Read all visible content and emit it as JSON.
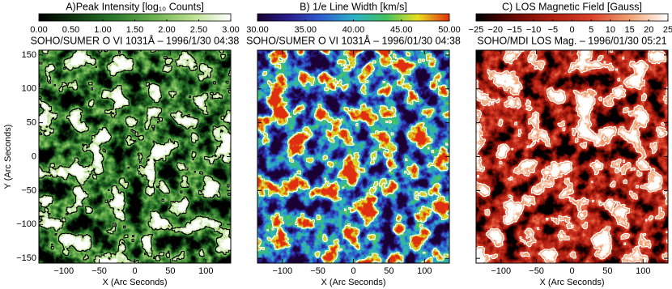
{
  "chart_data": [
    {
      "type": "image",
      "title": "A)Peak Intensity [log₁₀ Counts]",
      "subtitle": "SOHO/SUMER O VI 1031Å – 1996/1/30 04:38",
      "x_label": "X (Arc Seconds)",
      "y_label": "Y (Arc Seconds)",
      "ytick_labels": true,
      "contour_color": "#000000",
      "xlim": [
        -135,
        135
      ],
      "xticks": [
        {
          "value": -100,
          "label": "−100"
        },
        {
          "value": -50,
          "label": "−50"
        },
        0,
        50,
        100
      ],
      "ylim": [
        -157,
        157
      ],
      "yticks": [
        {
          "value": -150,
          "label": "−150"
        },
        {
          "value": -100,
          "label": "−100"
        },
        {
          "value": -50,
          "label": "−50"
        },
        0,
        50,
        100,
        150
      ],
      "colorbar": {
        "lim": [
          0,
          3
        ],
        "ticks": [
          {
            "value": 0,
            "label": "0.00"
          },
          {
            "value": 0.5,
            "label": "0.50"
          },
          {
            "value": 1,
            "label": "1.00"
          },
          {
            "value": 1.5,
            "label": "1.50"
          },
          {
            "value": 2,
            "label": "2.00"
          },
          {
            "value": 2.5,
            "label": "2.50"
          },
          {
            "value": 3,
            "label": "3.00"
          }
        ],
        "colors": [
          "#000000",
          "#0f3a12",
          "#2d7a2d",
          "#6bb04e",
          "#b9e08f",
          "#ffffff"
        ]
      }
    },
    {
      "type": "image",
      "title": "B) 1/e Line Width [km/s]",
      "subtitle": "SOHO/SUMER O VI 1031Å – 1996/01/30 04:38",
      "x_label": "X (Arc Seconds)",
      "ytick_labels": false,
      "contour_color": "#ffffff",
      "xlim": [
        -135,
        135
      ],
      "xticks": [
        {
          "value": -100,
          "label": "−100"
        },
        {
          "value": -50,
          "label": "−50"
        },
        0,
        50,
        100
      ],
      "ylim": [
        -157,
        157
      ],
      "yticks": [
        -150,
        -100,
        -50,
        0,
        50,
        100,
        150
      ],
      "colorbar": {
        "lim": [
          30,
          50
        ],
        "ticks": [
          {
            "value": 30,
            "label": "30.00"
          },
          {
            "value": 35,
            "label": "35.00"
          },
          {
            "value": 40,
            "label": "40.00"
          },
          {
            "value": 45,
            "label": "45.00"
          },
          {
            "value": 50,
            "label": "50.00"
          }
        ],
        "colors": [
          "#1a0033",
          "#2a1f8f",
          "#2f5fd0",
          "#2bb0c8",
          "#3fc060",
          "#e8e020",
          "#e03010"
        ]
      }
    },
    {
      "type": "image",
      "title": "C) LOS Magnetic Field [Gauss]",
      "subtitle": "SOHO/MDI LOS Mag. – 1996/01/30 05:21",
      "x_label": "X (Arc Seconds)",
      "ytick_labels": false,
      "contour_color": "#ffffff",
      "xlim": [
        -135,
        135
      ],
      "xticks": [
        {
          "value": -100,
          "label": "−100"
        },
        {
          "value": -50,
          "label": "−50"
        },
        0,
        50,
        100
      ],
      "ylim": [
        -157,
        157
      ],
      "yticks": [
        -150,
        -100,
        -50,
        0,
        50,
        100,
        150
      ],
      "colorbar": {
        "lim": [
          -25,
          25
        ],
        "ticks": [
          {
            "value": -25,
            "label": "−25"
          },
          {
            "value": -20,
            "label": "−20"
          },
          {
            "value": -15,
            "label": "−15"
          },
          {
            "value": -10,
            "label": "−10"
          },
          {
            "value": -5,
            "label": "−5"
          },
          0,
          5,
          10,
          15,
          20,
          25
        ],
        "colors": [
          "#000000",
          "#6a0a05",
          "#b01e10",
          "#d8402a",
          "#f2a070",
          "#ffffff"
        ]
      }
    }
  ]
}
